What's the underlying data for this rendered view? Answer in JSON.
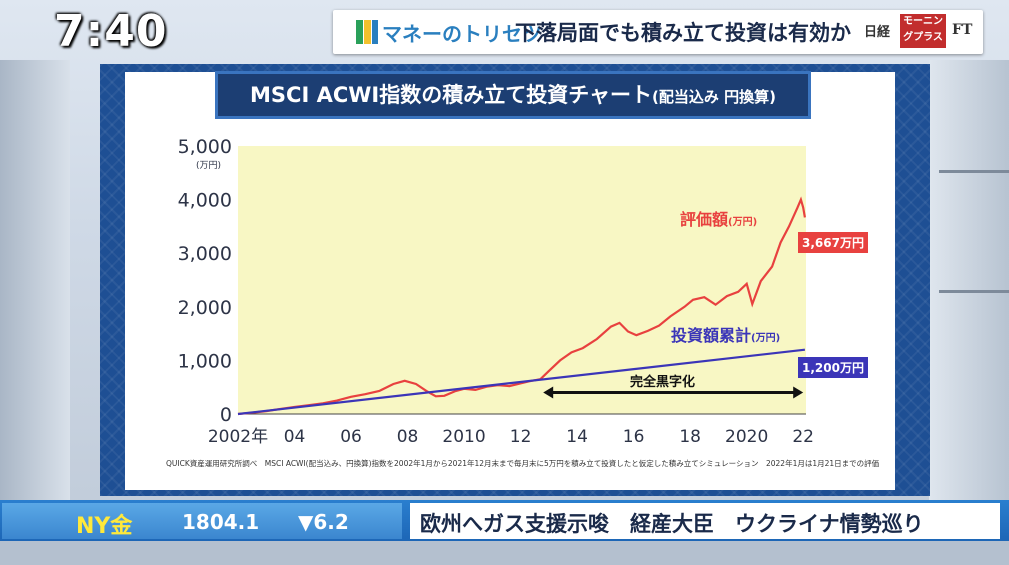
{
  "clock": "7:40",
  "header": {
    "corner_title": "マネーのトリセツ",
    "headline": "下落局面でも積み立て投資は有効か",
    "logo_nikkei": "日経",
    "logo_morning": "モーニングプラス",
    "logo_ft": "FT"
  },
  "panel": {
    "title": "MSCI ACWI指数の積み立て投資チャート",
    "title_sub": "(配当込み 円換算)",
    "source_note": "QUICK資産運用研究所調べ　MSCI ACWI(配当込み、円換算)指数を2002年1月から2021年12月末まで毎月末に5万円を積み立て投資したと仮定した積み立てシミュレーション　2022年1月は1月21日までの評価"
  },
  "chart_data": {
    "type": "line",
    "y_unit": "(万円)",
    "ylim": [
      0,
      5000
    ],
    "yticks": [
      "5,000",
      "4,000",
      "3,000",
      "2,000",
      "1,000",
      "0"
    ],
    "xlim": [
      2002,
      2022.1
    ],
    "xticks": [
      {
        "x": 2002,
        "label": "2002年"
      },
      {
        "x": 2004,
        "label": "04"
      },
      {
        "x": 2006,
        "label": "06"
      },
      {
        "x": 2008,
        "label": "08"
      },
      {
        "x": 2010,
        "label": "2010"
      },
      {
        "x": 2012,
        "label": "12"
      },
      {
        "x": 2014,
        "label": "14"
      },
      {
        "x": 2016,
        "label": "16"
      },
      {
        "x": 2018,
        "label": "18"
      },
      {
        "x": 2020,
        "label": "2020"
      },
      {
        "x": 2022,
        "label": "22"
      }
    ],
    "series": [
      {
        "name": "評価額",
        "unit": "(万円)",
        "color": "#e8413f",
        "end_label": "3,667万円",
        "points": [
          [
            2002,
            0
          ],
          [
            2002.5,
            25
          ],
          [
            2003,
            55
          ],
          [
            2003.5,
            95
          ],
          [
            2004,
            130
          ],
          [
            2004.5,
            165
          ],
          [
            2005,
            200
          ],
          [
            2005.5,
            250
          ],
          [
            2006,
            320
          ],
          [
            2006.5,
            370
          ],
          [
            2007,
            430
          ],
          [
            2007.5,
            560
          ],
          [
            2007.9,
            620
          ],
          [
            2008.3,
            560
          ],
          [
            2008.7,
            420
          ],
          [
            2009.0,
            330
          ],
          [
            2009.3,
            340
          ],
          [
            2009.7,
            430
          ],
          [
            2010,
            470
          ],
          [
            2010.4,
            450
          ],
          [
            2010.8,
            510
          ],
          [
            2011.2,
            540
          ],
          [
            2011.6,
            520
          ],
          [
            2011.9,
            560
          ],
          [
            2012.3,
            610
          ],
          [
            2012.7,
            650
          ],
          [
            2013.0,
            800
          ],
          [
            2013.4,
            1000
          ],
          [
            2013.8,
            1150
          ],
          [
            2014.2,
            1230
          ],
          [
            2014.7,
            1400
          ],
          [
            2015.2,
            1630
          ],
          [
            2015.5,
            1700
          ],
          [
            2015.8,
            1540
          ],
          [
            2016.1,
            1470
          ],
          [
            2016.5,
            1550
          ],
          [
            2016.9,
            1650
          ],
          [
            2017.3,
            1820
          ],
          [
            2017.8,
            2000
          ],
          [
            2018.1,
            2130
          ],
          [
            2018.5,
            2180
          ],
          [
            2018.9,
            2040
          ],
          [
            2019.3,
            2200
          ],
          [
            2019.7,
            2280
          ],
          [
            2020.0,
            2430
          ],
          [
            2020.2,
            2050
          ],
          [
            2020.5,
            2480
          ],
          [
            2020.9,
            2750
          ],
          [
            2021.2,
            3200
          ],
          [
            2021.5,
            3500
          ],
          [
            2021.8,
            3850
          ],
          [
            2021.92,
            4000
          ],
          [
            2022.0,
            3850
          ],
          [
            2022.06,
            3667
          ]
        ]
      },
      {
        "name": "投資額累計",
        "unit": "(万円)",
        "color": "#3b35b8",
        "end_label": "1,200万円",
        "points": [
          [
            2002,
            0
          ],
          [
            2022.06,
            1200
          ]
        ]
      }
    ],
    "annotations": [
      {
        "text": "完全黒字化",
        "type": "double-arrow",
        "x_from": 2012.8,
        "x_to": 2022.0,
        "y": 400
      }
    ],
    "grid": false,
    "legend": "inline-labels"
  },
  "ticker": {
    "market_name": "NY金",
    "price": "1804.1",
    "change": "▼6.2",
    "news": "欧州へガス支援示唆　経産大臣　ウクライナ情勢巡り"
  }
}
